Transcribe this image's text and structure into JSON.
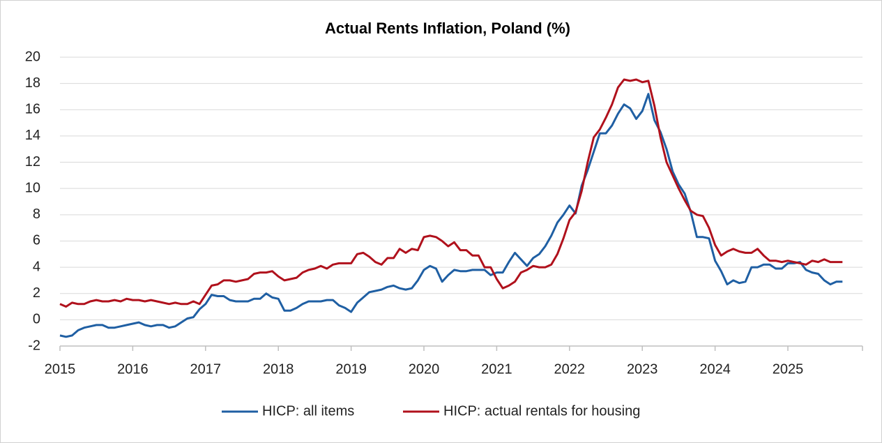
{
  "chart_data": {
    "type": "line",
    "title": "Actual Rents Inflation, Poland (%)",
    "categories": [
      "2015",
      null,
      null,
      null,
      null,
      null,
      null,
      null,
      null,
      null,
      null,
      null,
      "2016",
      null,
      null,
      null,
      null,
      null,
      null,
      null,
      null,
      null,
      null,
      null,
      "2017",
      null,
      null,
      null,
      null,
      null,
      null,
      null,
      null,
      null,
      null,
      null,
      "2018",
      null,
      null,
      null,
      null,
      null,
      null,
      null,
      null,
      null,
      null,
      null,
      "2019",
      null,
      null,
      null,
      null,
      null,
      null,
      null,
      null,
      null,
      null,
      null,
      "2020",
      null,
      null,
      null,
      null,
      null,
      null,
      null,
      null,
      null,
      null,
      null,
      "2021",
      null,
      null,
      null,
      null,
      null,
      null,
      null,
      null,
      null,
      null,
      null,
      "2022",
      null,
      null,
      null,
      null,
      null,
      null,
      null,
      null,
      null,
      null,
      null,
      "2023",
      null,
      null,
      null,
      null,
      null,
      null,
      null,
      null,
      null,
      null,
      null,
      "2024",
      null,
      null,
      null,
      null,
      null,
      null,
      null,
      null,
      null,
      null,
      null,
      "2025",
      null,
      null,
      null,
      null,
      null,
      null,
      null,
      null,
      null
    ],
    "series": [
      {
        "name": "HICP: all items",
        "color": "#1f5fa3",
        "values": [
          -1.2,
          -1.3,
          -1.2,
          -0.8,
          -0.6,
          -0.5,
          -0.4,
          -0.4,
          -0.6,
          -0.6,
          -0.5,
          -0.4,
          -0.3,
          -0.2,
          -0.4,
          -0.5,
          -0.4,
          -0.4,
          -0.6,
          -0.5,
          -0.2,
          0.1,
          0.2,
          0.8,
          1.2,
          1.9,
          1.8,
          1.8,
          1.5,
          1.4,
          1.4,
          1.4,
          1.6,
          1.6,
          2.0,
          1.7,
          1.6,
          0.7,
          0.7,
          0.9,
          1.2,
          1.4,
          1.4,
          1.4,
          1.5,
          1.5,
          1.1,
          0.9,
          0.6,
          1.3,
          1.7,
          2.1,
          2.2,
          2.3,
          2.5,
          2.6,
          2.4,
          2.3,
          2.4,
          3.0,
          3.8,
          4.1,
          3.9,
          2.9,
          3.4,
          3.8,
          3.7,
          3.7,
          3.8,
          3.8,
          3.8,
          3.4,
          3.6,
          3.6,
          4.4,
          5.1,
          4.6,
          4.1,
          4.7,
          5.0,
          5.6,
          6.4,
          7.4,
          8.0,
          8.7,
          8.1,
          10.2,
          11.4,
          12.8,
          14.2,
          14.2,
          14.8,
          15.7,
          16.4,
          16.1,
          15.3,
          15.9,
          17.2,
          15.2,
          14.3,
          13.0,
          11.3,
          10.3,
          9.6,
          8.2,
          6.3,
          6.3,
          6.2,
          4.5,
          3.7,
          2.7,
          3.0,
          2.8,
          2.9,
          4.0,
          4.0,
          4.2,
          4.2,
          3.9,
          3.9,
          4.3,
          4.3,
          4.4,
          3.8,
          3.6,
          3.5,
          3.0,
          2.7,
          2.9,
          2.9
        ]
      },
      {
        "name": "HICP: actual rentals for housing",
        "color": "#b0111c",
        "values": [
          1.2,
          1.0,
          1.3,
          1.2,
          1.2,
          1.4,
          1.5,
          1.4,
          1.4,
          1.5,
          1.4,
          1.6,
          1.5,
          1.5,
          1.4,
          1.5,
          1.4,
          1.3,
          1.2,
          1.3,
          1.2,
          1.2,
          1.4,
          1.2,
          1.9,
          2.6,
          2.7,
          3.0,
          3.0,
          2.9,
          3.0,
          3.1,
          3.5,
          3.6,
          3.6,
          3.7,
          3.3,
          3.0,
          3.1,
          3.2,
          3.6,
          3.8,
          3.9,
          4.1,
          3.9,
          4.2,
          4.3,
          4.3,
          4.3,
          5.0,
          5.1,
          4.8,
          4.4,
          4.2,
          4.7,
          4.7,
          5.4,
          5.1,
          5.4,
          5.3,
          6.3,
          6.4,
          6.3,
          6.0,
          5.6,
          5.9,
          5.3,
          5.3,
          4.9,
          4.9,
          4.0,
          4.0,
          3.1,
          2.4,
          2.6,
          2.9,
          3.6,
          3.8,
          4.1,
          4.0,
          4.0,
          4.2,
          5.0,
          6.2,
          7.6,
          8.2,
          9.8,
          12.0,
          13.9,
          14.5,
          15.4,
          16.4,
          17.7,
          18.3,
          18.2,
          18.3,
          18.1,
          18.2,
          16.3,
          13.9,
          12.0,
          11.0,
          10.0,
          9.1,
          8.3,
          8.0,
          7.9,
          7.0,
          5.7,
          4.9,
          5.2,
          5.4,
          5.2,
          5.1,
          5.1,
          5.4,
          4.9,
          4.5,
          4.5,
          4.4,
          4.5,
          4.4,
          4.3,
          4.2,
          4.5,
          4.4,
          4.6,
          4.4,
          4.4,
          4.4
        ]
      }
    ],
    "ylim": [
      -2,
      20
    ],
    "yticks": [
      -2,
      0,
      2,
      4,
      6,
      8,
      10,
      12,
      14,
      16,
      18,
      20
    ],
    "grid": true,
    "legend": "bottom"
  }
}
